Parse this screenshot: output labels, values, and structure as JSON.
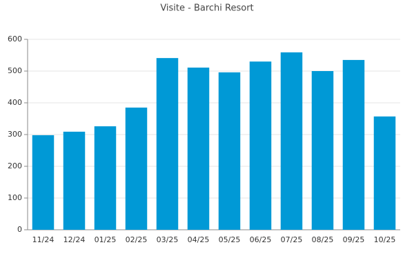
{
  "chart_data": {
    "type": "bar",
    "title": "Visite - Barchi Resort",
    "categories": [
      "11/24",
      "12/24",
      "01/25",
      "02/25",
      "03/25",
      "04/25",
      "05/25",
      "06/25",
      "07/25",
      "08/25",
      "09/25",
      "10/25"
    ],
    "values": [
      298,
      309,
      326,
      385,
      541,
      511,
      496,
      530,
      559,
      500,
      535,
      357
    ],
    "color": "#0099d6",
    "ylim": [
      0,
      600
    ],
    "yticks": [
      0,
      100,
      200,
      300,
      400,
      500,
      600
    ],
    "grid": true
  }
}
